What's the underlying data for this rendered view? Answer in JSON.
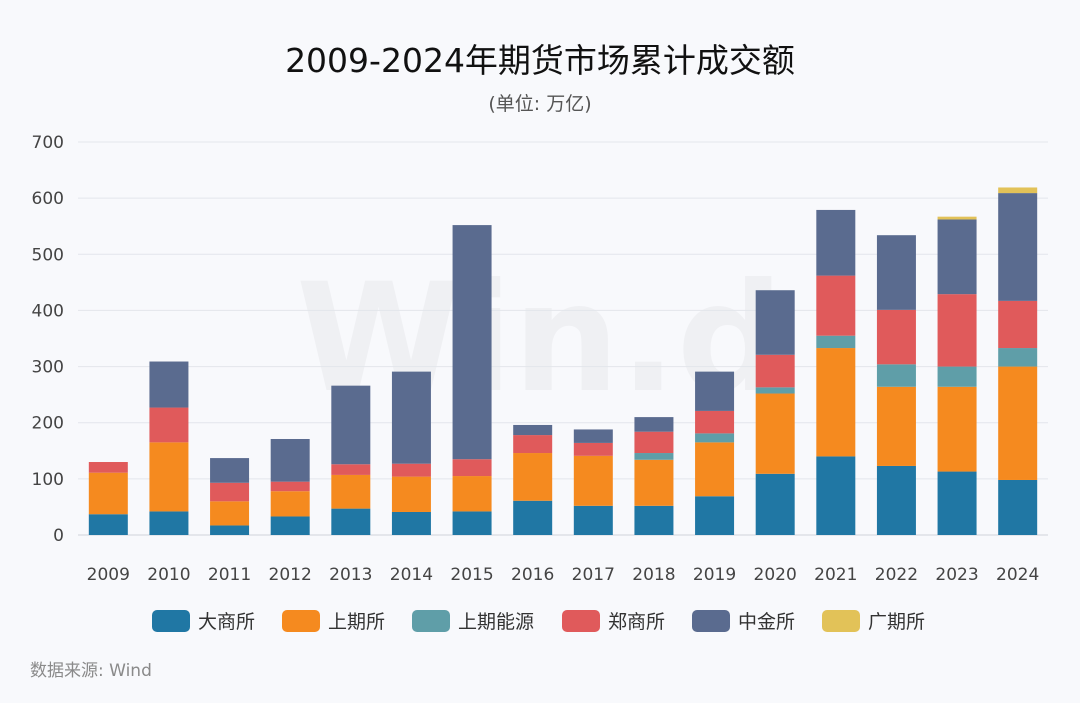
{
  "chart_data": {
    "type": "bar",
    "stacked": true,
    "title": "2009-2024年期货市场累计成交额",
    "subtitle": "(单位: 万亿)",
    "categories": [
      "2009",
      "2010",
      "2011",
      "2012",
      "2013",
      "2014",
      "2015",
      "2016",
      "2017",
      "2018",
      "2019",
      "2020",
      "2021",
      "2022",
      "2023",
      "2024"
    ],
    "ylim": [
      0,
      700
    ],
    "yticks": [
      0,
      100,
      200,
      300,
      400,
      500,
      600,
      700
    ],
    "grid": true,
    "legend_position": "bottom",
    "series": [
      {
        "name": "大商所",
        "color": "#2077a4",
        "values": [
          37,
          42,
          17,
          33,
          47,
          41,
          42,
          61,
          52,
          52,
          69,
          109,
          140,
          123,
          113,
          98
        ]
      },
      {
        "name": "上期所",
        "color": "#f58a1f",
        "values": [
          74,
          123,
          43,
          45,
          60,
          63,
          63,
          85,
          89,
          82,
          96,
          143,
          193,
          141,
          151,
          202
        ]
      },
      {
        "name": "上期能源",
        "color": "#5f9ea8",
        "values": [
          0,
          0,
          0,
          0,
          0,
          0,
          0,
          0,
          0,
          12,
          16,
          11,
          22,
          40,
          36,
          33
        ]
      },
      {
        "name": "郑商所",
        "color": "#e05a5b",
        "values": [
          19,
          62,
          33,
          17,
          19,
          23,
          30,
          32,
          23,
          38,
          40,
          58,
          107,
          97,
          129,
          84
        ]
      },
      {
        "name": "中金所",
        "color": "#5a6b8f",
        "values": [
          0,
          82,
          44,
          76,
          140,
          164,
          417,
          18,
          24,
          26,
          70,
          115,
          117,
          133,
          133,
          192
        ]
      },
      {
        "name": "广期所",
        "color": "#e2c258",
        "values": [
          0,
          0,
          0,
          0,
          0,
          0,
          0,
          0,
          0,
          0,
          0,
          0,
          0,
          0,
          5,
          10
        ]
      }
    ]
  },
  "source_text": "数据来源: Wind",
  "watermark_text": "Win.d"
}
